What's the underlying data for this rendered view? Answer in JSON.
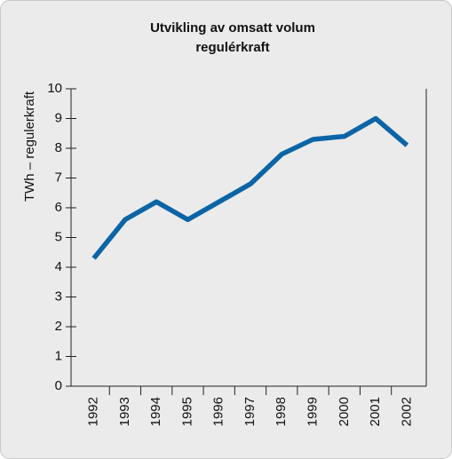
{
  "chart_data": {
    "type": "line",
    "title": [
      "Utvikling av omsatt volum",
      "regulérkraft"
    ],
    "y_label": "TWh – regulerkraft",
    "categories": [
      "1992",
      "1993",
      "1994",
      "1995",
      "1996",
      "1997",
      "1998",
      "1999",
      "2000",
      "2001",
      "2002"
    ],
    "series": [
      {
        "color": "#0b64a5",
        "values": [
          4.3,
          5.6,
          6.2,
          5.6,
          6.2,
          6.8,
          7.8,
          8.3,
          8.4,
          9.0,
          8.1
        ]
      }
    ],
    "ylim": [
      0,
      10
    ],
    "yticks": [
      0,
      1,
      2,
      3,
      4,
      5,
      6,
      7,
      8,
      9,
      10
    ],
    "grid": false
  }
}
